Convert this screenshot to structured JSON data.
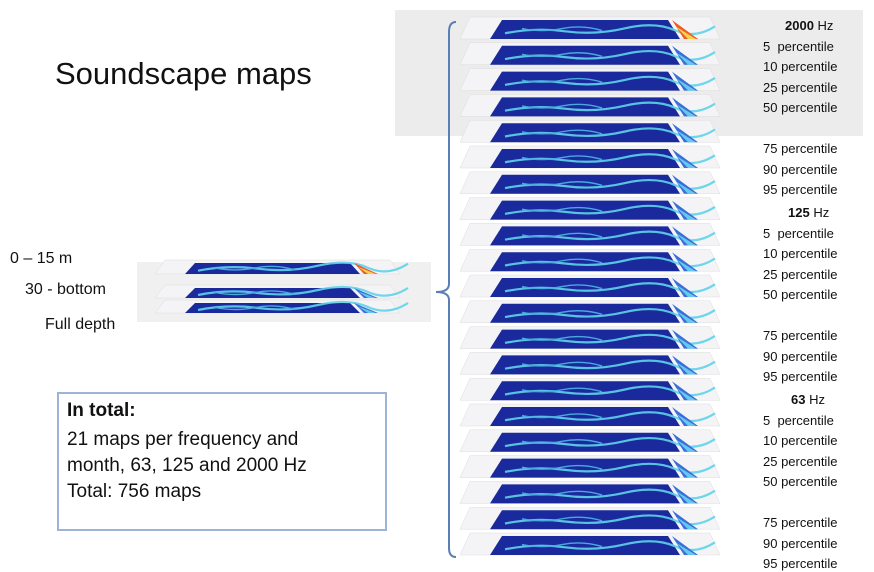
{
  "title": "Soundscape maps",
  "depth_labels": [
    "0 – 15 m",
    "30 - bottom",
    "Full depth"
  ],
  "summary": {
    "heading": "In total:",
    "lines": [
      "21 maps per frequency and",
      "month, 63, 125 and 2000 Hz",
      "Total: 756 maps"
    ]
  },
  "frequency_groups": [
    {
      "freq": "2000",
      "unit": "Hz",
      "percentiles": [
        "5  percentile",
        "10 percentile",
        "25 percentile",
        "50 percentile",
        "75 percentile",
        "90 percentile",
        "95 percentile"
      ]
    },
    {
      "freq": "125",
      "unit": "Hz",
      "percentiles": [
        "5  percentile",
        "10 percentile",
        "25 percentile",
        "50 percentile",
        "75 percentile",
        "90 percentile",
        "95 percentile"
      ]
    },
    {
      "freq": "63",
      "unit": "Hz",
      "percentiles": [
        "5  percentile",
        "10 percentile",
        "25 percentile",
        "50 percentile",
        "75 percentile",
        "90 percentile",
        "95 percentile"
      ]
    }
  ],
  "colors": {
    "map_blue": "#1a2a9c",
    "map_cyan": "#5fd3ea",
    "brace": "#5b7fb5",
    "box_border": "#9db4d6",
    "panel_gray": "#ececec"
  }
}
